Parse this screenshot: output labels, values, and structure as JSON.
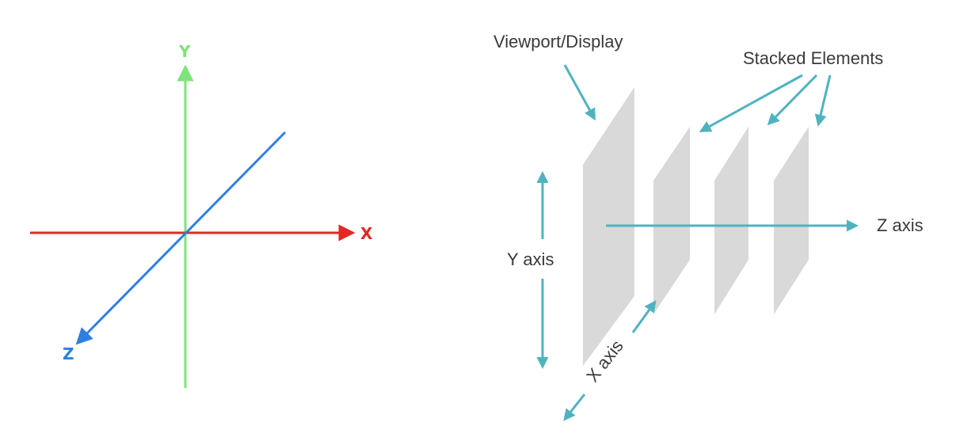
{
  "left_diagram": {
    "y_label": "Y",
    "x_label": "X",
    "z_label": "Z",
    "colors": {
      "y_axis": "#7ee37a",
      "x_axis": "#e02a24",
      "z_axis": "#2f7fe0"
    }
  },
  "right_diagram": {
    "viewport_label": "Viewport/Display",
    "stacked_label": "Stacked Elements",
    "y_axis_label": "Y axis",
    "x_axis_label": "X axis",
    "z_axis_label": "Z axis",
    "colors": {
      "arrow": "#4fb3bf",
      "plane": "#d9d9d9",
      "text": "#3a3a3a"
    }
  }
}
